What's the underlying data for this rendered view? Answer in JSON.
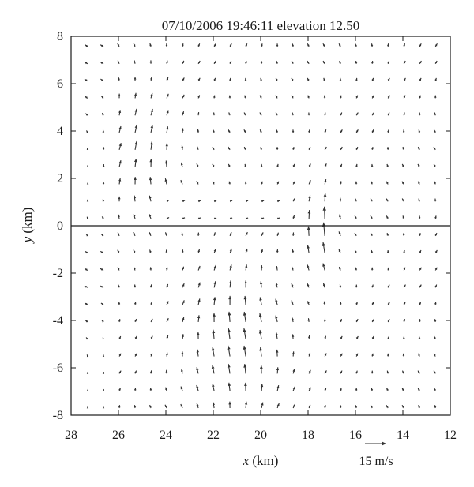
{
  "chart_data": {
    "type": "vector_field",
    "title": "07/10/2006 19:46:11 elevation 12.50",
    "xlabel_var": "x",
    "xlabel_unit": " (km)",
    "ylabel_var": "y",
    "ylabel_unit": " (km)",
    "xlim": [
      28,
      12
    ],
    "ylim": [
      -8,
      8
    ],
    "x_reversed": true,
    "x_ticks": [
      28,
      26,
      24,
      22,
      20,
      18,
      16,
      14,
      12
    ],
    "y_ticks": [
      8,
      6,
      4,
      2,
      0,
      -2,
      -4,
      -6,
      -8
    ],
    "reference_vector": {
      "speed": 15,
      "label": "15 m/s"
    },
    "zero_line_y": 0,
    "grid_spacing_km": {
      "x": 0.667,
      "y": 0.727
    },
    "vector_field_description": "Wind vectors on a regular grid; mostly northward flow, strongest along x≈22–20 km south of y=0 and near x≈17.5 km at y≈0."
  }
}
